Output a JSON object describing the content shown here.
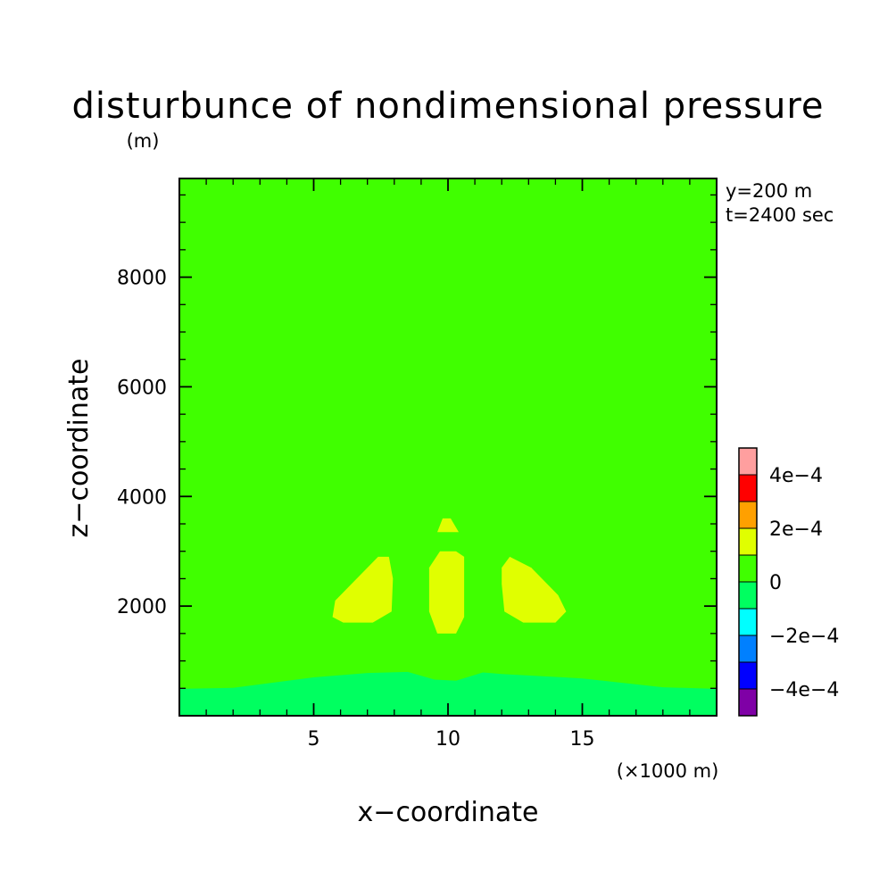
{
  "chart_data": {
    "type": "heatmap",
    "title": "disturbunce of nondimensional pressure",
    "y_unit": "(m)",
    "x_unit": "(×1000 m)",
    "xlabel": "x−coordinate",
    "ylabel": "z−coordinate",
    "annotations": [
      "y=200 m",
      "t=2400 sec"
    ],
    "xlim": [
      0,
      20
    ],
    "ylim": [
      0,
      9800
    ],
    "x_ticks": [
      5,
      10,
      15
    ],
    "x_tick_labels": [
      "5",
      "10",
      "15"
    ],
    "y_ticks": [
      2000,
      4000,
      6000,
      8000
    ],
    "y_tick_labels": [
      "2000",
      "4000",
      "6000",
      "8000"
    ],
    "background_level": "0 to 1e-4",
    "colorbar": {
      "levels": [
        -0.0005,
        -0.0004,
        -0.0003,
        -0.0002,
        -0.0001,
        0,
        0.0001,
        0.0002,
        0.0003,
        0.0004,
        0.0005
      ],
      "colors": [
        "#7f00a6",
        "#0000ff",
        "#0080ff",
        "#00ffff",
        "#00ff60",
        "#40ff00",
        "#e0ff00",
        "#ffa000",
        "#ff0000",
        "#ff9f9f"
      ],
      "tick_values": [
        -0.0004,
        -0.0002,
        0,
        0.0002,
        0.0004
      ],
      "tick_labels": [
        "−4e−4",
        "−2e−4",
        "0",
        "2e−4",
        "4e−4"
      ]
    },
    "regions": [
      {
        "name": "negative-surface-layer",
        "level": "-1e-4 to 0",
        "color": "#00ff60",
        "points": [
          [
            0,
            0
          ],
          [
            0,
            490
          ],
          [
            2,
            510
          ],
          [
            5,
            700
          ],
          [
            7,
            780
          ],
          [
            8.5,
            800
          ],
          [
            9.5,
            660
          ],
          [
            10.3,
            640
          ],
          [
            11.3,
            790
          ],
          [
            12,
            760
          ],
          [
            15,
            680
          ],
          [
            18,
            520
          ],
          [
            20,
            490
          ],
          [
            20,
            0
          ]
        ]
      },
      {
        "name": "positive-left-lobe",
        "level": "1e-4 to 2e-4",
        "color": "#e0ff00",
        "points": [
          [
            5.7,
            1800
          ],
          [
            6.1,
            1700
          ],
          [
            7.2,
            1700
          ],
          [
            7.9,
            1900
          ],
          [
            7.95,
            2500
          ],
          [
            7.8,
            2900
          ],
          [
            7.4,
            2900
          ],
          [
            6.4,
            2400
          ],
          [
            5.8,
            2100
          ]
        ]
      },
      {
        "name": "positive-center-lobe",
        "level": "1e-4 to 2e-4",
        "color": "#e0ff00",
        "points": [
          [
            9.6,
            1500
          ],
          [
            10.3,
            1500
          ],
          [
            10.6,
            1800
          ],
          [
            10.6,
            2500
          ],
          [
            10.6,
            2900
          ],
          [
            10.3,
            3000
          ],
          [
            9.7,
            3000
          ],
          [
            9.3,
            2700
          ],
          [
            9.3,
            1900
          ]
        ]
      },
      {
        "name": "positive-right-lobe",
        "level": "1e-4 to 2e-4",
        "color": "#e0ff00",
        "points": [
          [
            12.1,
            1900
          ],
          [
            12.8,
            1700
          ],
          [
            14,
            1700
          ],
          [
            14.4,
            1900
          ],
          [
            14.1,
            2200
          ],
          [
            13.1,
            2700
          ],
          [
            12.3,
            2900
          ],
          [
            12.0,
            2700
          ],
          [
            12.0,
            2400
          ]
        ]
      },
      {
        "name": "positive-upper-blob",
        "level": "1e-4 to 2e-4",
        "color": "#e0ff00",
        "points": [
          [
            9.6,
            3350
          ],
          [
            9.8,
            3600
          ],
          [
            10.1,
            3600
          ],
          [
            10.4,
            3350
          ]
        ]
      }
    ]
  }
}
